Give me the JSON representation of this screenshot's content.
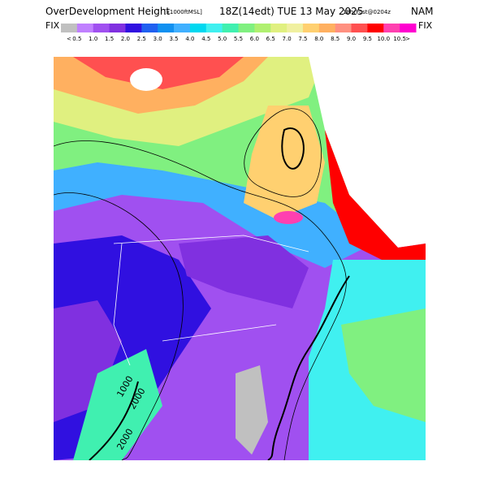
{
  "header": {
    "title": "OverDevelopment Height",
    "units": "[x1000ftMSL]",
    "valid_time": "18Z(14edt) TUE 13 May 2025",
    "forecast": "18hrFcst@0204z",
    "model": "NAM"
  },
  "colorbar": {
    "left_label": "FIX",
    "right_label": "FIX",
    "below_label": "<",
    "above_label": ">",
    "labels": [
      "0.5",
      "1.0",
      "1.5",
      "2.0",
      "2.5",
      "3.0",
      "3.5",
      "4.0",
      "4.5",
      "5.0",
      "5.5",
      "6.0",
      "6.5",
      "7.0",
      "7.5",
      "8.0",
      "8.5",
      "9.0",
      "9.5",
      "10.0",
      "10.5"
    ],
    "colors": [
      "#c0c0c0",
      "#c080ff",
      "#a050f0",
      "#8030e0",
      "#3010e0",
      "#2060f0",
      "#1090f0",
      "#40b0ff",
      "#00d8f0",
      "#40f0f0",
      "#40f0b0",
      "#80f080",
      "#b0f070",
      "#e0f080",
      "#f0f0a0",
      "#ffd070",
      "#ffb060",
      "#ff9080",
      "#ff5050",
      "#ff0000",
      "#ff40b0",
      "#ff00d0"
    ]
  },
  "map": {
    "contour_labels": [
      "1000",
      "2000",
      "2000"
    ]
  }
}
